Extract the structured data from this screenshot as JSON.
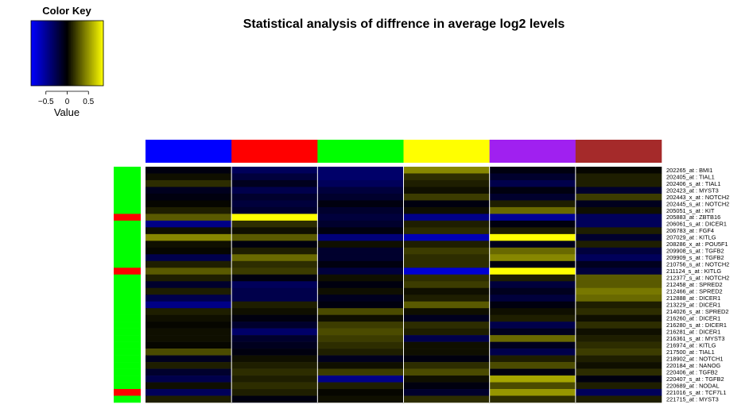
{
  "chart_data": {
    "type": "heatmap",
    "title": "Statistical analysis of diffrence in average log2 levels",
    "color_key": {
      "title": "Color Key",
      "xlabel": "Value",
      "ticks": [
        "−0.5",
        "0",
        "0.5"
      ],
      "tick_values": [
        -0.5,
        0,
        0.5
      ],
      "range": [
        -0.85,
        0.85
      ],
      "colors": {
        "low": "#0000ff",
        "mid": "#000000",
        "high": "#ffff00"
      }
    },
    "column_colors": [
      "#0000ff",
      "#ff0000",
      "#00ff00",
      "#ffff00",
      "#a020f0",
      "#a52a2a"
    ],
    "row_labels": [
      "202265_at : BMI1",
      "202405_at : TIAL1",
      "202406_s_at : TIAL1",
      "202423_at : MYST3",
      "202443_x_at : NOTCH2",
      "202445_s_at : NOTCH2",
      "205051_s_at : KIT",
      "205883_at : ZBTB16",
      "206061_s_at : DICER1",
      "206783_at : FGF4",
      "207029_at : KITLG",
      "208286_x_at : POU5F1",
      "209908_s_at : TGFB2",
      "209909_s_at : TGFB2",
      "210756_s_at : NOTCH2",
      "211124_s_at : KITLG",
      "212377_s_at : NOTCH2",
      "212458_at : SPRED2",
      "212466_at : SPRED2",
      "212888_at : DICER1",
      "213229_at : DICER1",
      "214026_s_at : SPRED2",
      "216260_at : DICER1",
      "216280_s_at : DICER1",
      "216281_at : DICER1",
      "216361_s_at : MYST3",
      "216974_at : KITLG",
      "217500_at : TIAL1",
      "218902_at : NOTCH1",
      "220184_at : NANOG",
      "220406_at : TGFB2",
      "220407_s_at : TGFB2",
      "220689_at : NODAL",
      "221016_s_at : TCF7L1",
      "221715_at : MYST3"
    ],
    "row_colors": [
      "#00ff00",
      "#00ff00",
      "#00ff00",
      "#00ff00",
      "#00ff00",
      "#00ff00",
      "#00ff00",
      "#ff0000",
      "#00ff00",
      "#00ff00",
      "#00ff00",
      "#00ff00",
      "#00ff00",
      "#00ff00",
      "#00ff00",
      "#ff0000",
      "#00ff00",
      "#00ff00",
      "#00ff00",
      "#00ff00",
      "#00ff00",
      "#00ff00",
      "#00ff00",
      "#00ff00",
      "#00ff00",
      "#00ff00",
      "#00ff00",
      "#00ff00",
      "#00ff00",
      "#00ff00",
      "#00ff00",
      "#00ff00",
      "#00ff00",
      "#ff0000",
      "#00ff00"
    ],
    "values": [
      [
        -0.05,
        -0.3,
        -0.35,
        0.45,
        -0.05,
        0.02
      ],
      [
        0.05,
        -0.2,
        -0.35,
        0.15,
        -0.15,
        0.1
      ],
      [
        0.15,
        -0.1,
        -0.3,
        0.1,
        -0.25,
        0.1
      ],
      [
        -0.1,
        -0.25,
        -0.2,
        0.05,
        -0.05,
        -0.15
      ],
      [
        -0.05,
        -0.15,
        -0.15,
        0.2,
        -0.15,
        0.2
      ],
      [
        0.02,
        -0.2,
        -0.05,
        -0.05,
        0.1,
        -0.1
      ],
      [
        0.1,
        -0.15,
        -0.15,
        0.05,
        0.35,
        0.05
      ],
      [
        0.3,
        0.95,
        -0.2,
        -0.45,
        -0.5,
        -0.3
      ],
      [
        -0.45,
        0.15,
        -0.15,
        0.1,
        -0.05,
        -0.3
      ],
      [
        0.05,
        0.05,
        -0.05,
        0.15,
        0.1,
        0.1
      ],
      [
        0.45,
        0.3,
        -0.4,
        -0.6,
        0.9,
        -0.15
      ],
      [
        0.05,
        -0.05,
        0.05,
        0.1,
        -0.1,
        0.1
      ],
      [
        0.02,
        0.1,
        -0.15,
        0.2,
        0.35,
        -0.2
      ],
      [
        -0.25,
        0.35,
        -0.15,
        0.15,
        0.45,
        -0.3
      ],
      [
        0.1,
        0.15,
        -0.05,
        0.15,
        -0.05,
        -0.1
      ],
      [
        0.3,
        0.2,
        -0.2,
        -0.7,
        0.95,
        -0.2
      ],
      [
        0.1,
        -0.05,
        0.05,
        0.15,
        0.1,
        0.3
      ],
      [
        -0.15,
        -0.3,
        -0.05,
        0.2,
        -0.2,
        0.3
      ],
      [
        0.1,
        -0.25,
        0.05,
        0.05,
        -0.1,
        0.4
      ],
      [
        -0.25,
        -0.25,
        -0.1,
        0.1,
        -0.2,
        0.35
      ],
      [
        -0.45,
        0.1,
        -0.05,
        0.3,
        -0.05,
        0.1
      ],
      [
        0.1,
        0.05,
        0.25,
        0.05,
        0.05,
        0.15
      ],
      [
        0.05,
        -0.05,
        0.05,
        -0.1,
        0.1,
        0.05
      ],
      [
        0.02,
        -0.15,
        0.2,
        0.15,
        -0.25,
        0.15
      ],
      [
        0.05,
        -0.35,
        0.25,
        0.1,
        -0.1,
        0.05
      ],
      [
        0.05,
        -0.15,
        0.2,
        -0.25,
        0.35,
        0.1
      ],
      [
        0.02,
        -0.1,
        0.15,
        0.05,
        -0.1,
        0.15
      ],
      [
        0.25,
        -0.05,
        0.1,
        0.05,
        -0.25,
        0.2
      ],
      [
        -0.1,
        0.05,
        -0.1,
        -0.05,
        0.1,
        0.1
      ],
      [
        0.1,
        0.1,
        0.05,
        0.15,
        0.25,
        0.05
      ],
      [
        -0.15,
        0.15,
        0.2,
        0.25,
        -0.05,
        0.15
      ],
      [
        -0.25,
        0.1,
        -0.45,
        0.05,
        0.55,
        -0.05
      ],
      [
        0.05,
        0.15,
        0.1,
        -0.05,
        0.25,
        0.1
      ],
      [
        -0.3,
        0.1,
        0.02,
        -0.15,
        0.5,
        -0.3
      ],
      [
        0.1,
        -0.05,
        0.05,
        0.15,
        0.15,
        0.1
      ]
    ]
  }
}
